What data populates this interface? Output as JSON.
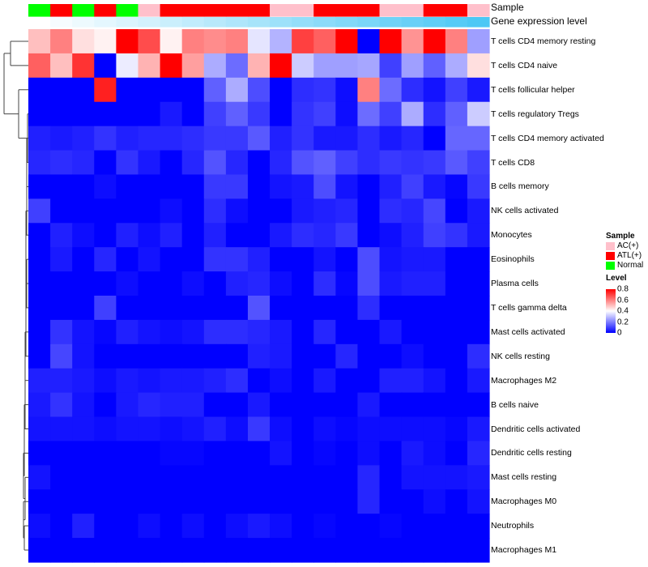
{
  "chart_data": {
    "type": "heatmap",
    "title": "",
    "annotations": {
      "sample_label": "Sample",
      "gene_label": "Gene expression level",
      "sample": [
        "Normal",
        "ATL(+)",
        "Normal",
        "ATL(+)",
        "Normal",
        "AC(+)",
        "ATL(+)",
        "ATL(+)",
        "ATL(+)",
        "ATL(+)",
        "ATL(+)",
        "AC(+)",
        "AC(+)",
        "ATL(+)",
        "ATL(+)",
        "ATL(+)",
        "AC(+)",
        "AC(+)",
        "ATL(+)",
        "ATL(+)",
        "AC(+)"
      ],
      "gene_expression": [
        0,
        0.05,
        0.1,
        0.15,
        0.2,
        0.25,
        0.3,
        0.35,
        0.4,
        0.45,
        0.5,
        0.55,
        0.6,
        0.65,
        0.7,
        0.75,
        0.8,
        0.85,
        0.9,
        0.95,
        1.0
      ]
    },
    "rows": [
      "T cells CD4 memory resting",
      "T cells CD4 naive",
      "T cells follicular helper",
      "T cells regulatory  Tregs",
      "T cells CD4 memory activated",
      "T cells CD8",
      "B cells memory",
      "NK cells activated",
      "Monocytes",
      "Eosinophils",
      "Plasma cells",
      "T cells gamma delta",
      "Mast cells activated",
      "NK cells resting",
      "Macrophages M2",
      "B cells naive",
      "Dendritic cells activated",
      "Dendritic cells resting",
      "Mast cells resting",
      "Macrophages M0",
      "Neutrophils",
      "Macrophages M1"
    ],
    "values": [
      [
        0.5,
        0.6,
        0.45,
        0.42,
        0.8,
        0.68,
        0.42,
        0.6,
        0.58,
        0.6,
        0.36,
        0.28,
        0.7,
        0.65,
        0.8,
        0,
        0.8,
        0.57,
        0.8,
        0.6,
        0.25
      ],
      [
        0.65,
        0.5,
        0.72,
        0,
        0.37,
        0.52,
        0.8,
        0.55,
        0.27,
        0.17,
        0.52,
        0.8,
        0.32,
        0.25,
        0.25,
        0.26,
        0.1,
        0.25,
        0.15,
        0.27,
        0.45
      ],
      [
        0,
        0,
        0,
        0.75,
        0,
        0,
        0,
        0,
        0.15,
        0.27,
        0.12,
        0,
        0.07,
        0.08,
        0.02,
        0.6,
        0.17,
        0.07,
        0.03,
        0.1,
        0.04
      ],
      [
        0,
        0,
        0,
        0,
        0,
        0,
        0.04,
        0,
        0.1,
        0.15,
        0.09,
        0,
        0.08,
        0.1,
        0.02,
        0.17,
        0.1,
        0.27,
        0.07,
        0.15,
        0.32
      ],
      [
        0.05,
        0.04,
        0.05,
        0.08,
        0.05,
        0.06,
        0.06,
        0.07,
        0.09,
        0.09,
        0.14,
        0.05,
        0.08,
        0.04,
        0.04,
        0.07,
        0.04,
        0.06,
        0,
        0.16,
        0.16
      ],
      [
        0.06,
        0.07,
        0.06,
        0,
        0.08,
        0.04,
        0,
        0.06,
        0.13,
        0.06,
        0,
        0.06,
        0.13,
        0.15,
        0.1,
        0.07,
        0.09,
        0.08,
        0.09,
        0.14,
        0.1
      ],
      [
        0,
        0,
        0,
        0.02,
        0,
        0,
        0,
        0,
        0.09,
        0.09,
        0,
        0.03,
        0.04,
        0.12,
        0.03,
        0,
        0.05,
        0.1,
        0.04,
        0.01,
        0.09
      ],
      [
        0.1,
        0,
        0,
        0,
        0,
        0,
        0.02,
        0,
        0.07,
        0.02,
        0,
        0,
        0.04,
        0.05,
        0.06,
        0,
        0.07,
        0.06,
        0.11,
        0,
        0.04
      ],
      [
        0,
        0.05,
        0.02,
        0,
        0.05,
        0.02,
        0.05,
        0,
        0.05,
        0,
        0,
        0.04,
        0.07,
        0.06,
        0.09,
        0,
        0.02,
        0.05,
        0.1,
        0.08,
        0.04
      ],
      [
        0,
        0.04,
        0,
        0.06,
        0,
        0.03,
        0,
        0,
        0.08,
        0.08,
        0.05,
        0,
        0,
        0.03,
        0,
        0.12,
        0.03,
        0.04,
        0.04,
        0,
        0
      ],
      [
        0,
        0,
        0,
        0,
        0.02,
        0,
        0,
        0.02,
        0,
        0.05,
        0.06,
        0.02,
        0,
        0.07,
        0.01,
        0.12,
        0.04,
        0.05,
        0.05,
        0,
        0
      ],
      [
        0,
        0,
        0,
        0.1,
        0,
        0,
        0,
        0,
        0,
        0,
        0.13,
        0,
        0,
        0,
        0,
        0.07,
        0,
        0,
        0,
        0,
        0
      ],
      [
        0,
        0.08,
        0.03,
        0.01,
        0.05,
        0.03,
        0.02,
        0.03,
        0.07,
        0.07,
        0.06,
        0.04,
        0,
        0.06,
        0,
        0,
        0.04,
        0,
        0,
        0,
        0
      ],
      [
        0,
        0.11,
        0.03,
        0,
        0,
        0,
        0,
        0,
        0,
        0,
        0.05,
        0.04,
        0,
        0,
        0.06,
        0,
        0,
        0.02,
        0,
        0,
        0.07
      ],
      [
        0.05,
        0.05,
        0.04,
        0.02,
        0.04,
        0.03,
        0.04,
        0.04,
        0.05,
        0.07,
        0,
        0.02,
        0,
        0.04,
        0,
        0,
        0.05,
        0.05,
        0.03,
        0,
        0.04
      ],
      [
        0.04,
        0.08,
        0.03,
        0,
        0.04,
        0.06,
        0.05,
        0.05,
        0,
        0,
        0.04,
        0,
        0,
        0,
        0,
        0.04,
        0,
        0,
        0,
        0,
        0
      ],
      [
        0.03,
        0.03,
        0.03,
        0.02,
        0.03,
        0.03,
        0.02,
        0.03,
        0.05,
        0.02,
        0.09,
        0.02,
        0,
        0.02,
        0.01,
        0.02,
        0.02,
        0.02,
        0.02,
        0.01,
        0.04
      ],
      [
        0,
        0,
        0,
        0,
        0,
        0,
        0.01,
        0.01,
        0,
        0,
        0,
        0.03,
        0,
        0.01,
        0,
        0.02,
        0,
        0.04,
        0.02,
        0,
        0.06
      ],
      [
        0.03,
        0,
        0,
        0,
        0,
        0,
        0,
        0,
        0,
        0,
        0,
        0,
        0,
        0,
        0,
        0.06,
        0,
        0.03,
        0.03,
        0.03,
        0.04
      ],
      [
        0,
        0,
        0,
        0,
        0,
        0,
        0,
        0,
        0,
        0,
        0,
        0,
        0,
        0,
        0,
        0.06,
        0,
        0,
        0.02,
        0,
        0.03
      ],
      [
        0.02,
        0,
        0.05,
        0,
        0,
        0.02,
        0,
        0.02,
        0,
        0.02,
        0.04,
        0.02,
        0,
        0.01,
        0,
        0,
        0.01,
        0,
        0,
        0,
        0
      ],
      [
        0,
        0,
        0,
        0,
        0,
        0,
        0,
        0,
        0,
        0,
        0,
        0,
        0,
        0,
        0,
        0,
        0,
        0,
        0,
        0,
        0
      ]
    ],
    "color_range": [
      0,
      0.8
    ],
    "colors": {
      "low": "#0000ff",
      "mid": "#ffffff",
      "high": "#ff0000",
      "gene_low": "#ffffff",
      "gene_high": "#4dc8f5"
    },
    "legend": {
      "placement": "right",
      "sample_title": "Sample",
      "sample_items": [
        {
          "label": "AC(+)",
          "color": "#ffc0cb"
        },
        {
          "label": "ATL(+)",
          "color": "#ff0000"
        },
        {
          "label": "Normal",
          "color": "#00ff00"
        }
      ],
      "level_title": "Level",
      "level_ticks": [
        "0.8",
        "0.6",
        "0.4",
        "0.2",
        "0"
      ]
    }
  }
}
